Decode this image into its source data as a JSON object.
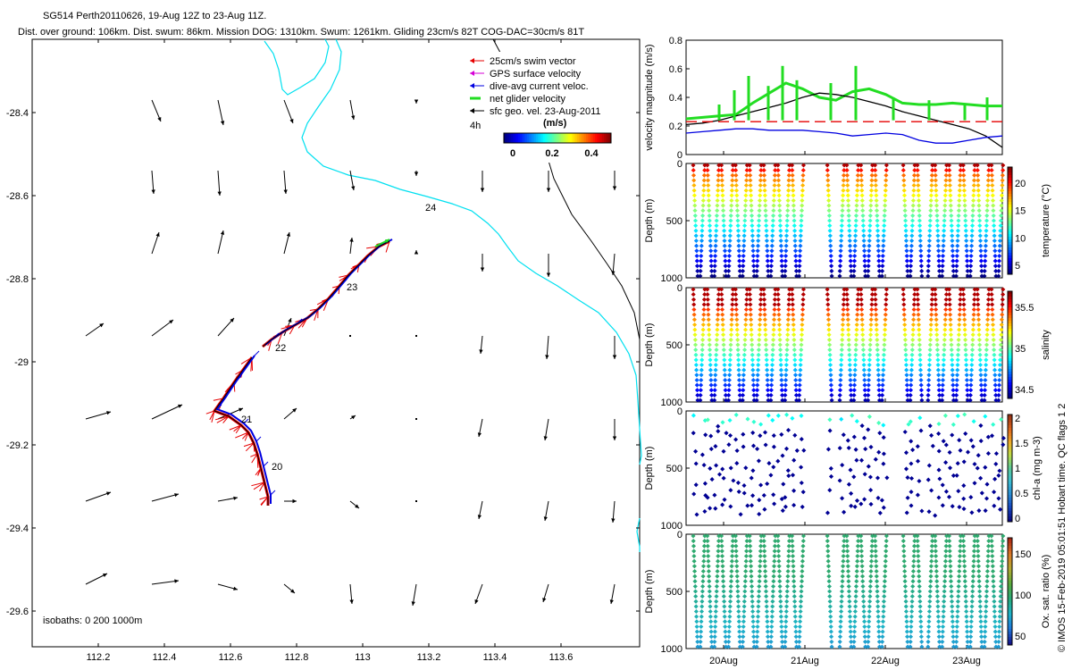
{
  "header": {
    "title_line1": "SG514 Perth20110626, 19-Aug 12Z to 23-Aug 11Z.",
    "title_line2": "Dist. over ground: 106km. Dist. swum: 86km. Mission DOG: 1310km. Swum: 1261km. Gliding 23cm/s 82T COG-DAC=30cm/s 81T"
  },
  "map": {
    "legend": {
      "items": [
        {
          "label": "25cm/s swim vector",
          "color": "#e60000"
        },
        {
          "label": "GPS surface velocity",
          "color": "#d600d6"
        },
        {
          "label": "dive-avg current veloc.",
          "color": "#0000e0"
        },
        {
          "label": "net glider velocity",
          "color": "#22dd22"
        },
        {
          "label": "sfc geo. vel. 23-Aug-2011",
          "color": "#000000"
        }
      ],
      "time_label": "4h",
      "colorbar_title": "(m/s)",
      "colorbar_ticks": [
        "0",
        "0.2",
        "0.4"
      ]
    },
    "isobaths_text": "isobaths: 0   200  1000m",
    "day_labels": [
      "24",
      "23",
      "22",
      "21",
      "20"
    ],
    "lat_ticks": [
      "-28.4",
      "-28.6",
      "-28.8",
      "-29",
      "-29.2",
      "-29.4",
      "-29.6"
    ],
    "lon_ticks": [
      "112.2",
      "112.4",
      "112.6",
      "112.8",
      "113",
      "113.2",
      "113.4",
      "113.6"
    ],
    "colors": {
      "coast": "#00e0f0",
      "isobath": "#000000",
      "track_red": "#e60000",
      "track_blue": "#0000e0",
      "net": "#22dd22"
    }
  },
  "chart_data": [
    {
      "type": "line",
      "ylabel": "velocity magnitude (m/s)",
      "ylim": [
        0,
        0.8
      ],
      "yticks": [
        "0",
        "0.2",
        "0.4",
        "0.6",
        "0.8"
      ],
      "series": [
        {
          "color": "#22dd22",
          "values": [
            0.25,
            0.26,
            0.27,
            0.28,
            0.36,
            0.43,
            0.5,
            0.46,
            0.4,
            0.38,
            0.44,
            0.46,
            0.42,
            0.36,
            0.35,
            0.35,
            0.36,
            0.35,
            0.34,
            0.34
          ]
        },
        {
          "color": "#000000",
          "values": [
            0.21,
            0.22,
            0.24,
            0.27,
            0.3,
            0.33,
            0.36,
            0.4,
            0.43,
            0.42,
            0.4,
            0.37,
            0.34,
            0.3,
            0.27,
            0.24,
            0.21,
            0.18,
            0.13,
            0.05
          ]
        },
        {
          "color": "#0000e0",
          "values": [
            0.15,
            0.16,
            0.17,
            0.18,
            0.18,
            0.17,
            0.17,
            0.17,
            0.16,
            0.15,
            0.13,
            0.14,
            0.15,
            0.14,
            0.1,
            0.08,
            0.08,
            0.1,
            0.12,
            0.13
          ]
        },
        {
          "color": "#e60000",
          "values": [
            0.23,
            0.23,
            0.23,
            0.23,
            0.23,
            0.23,
            0.23,
            0.23,
            0.23,
            0.23,
            0.23,
            0.23,
            0.23,
            0.23,
            0.23,
            0.23,
            0.23,
            0.23,
            0.23,
            0.23
          ]
        }
      ]
    },
    {
      "type": "scatter",
      "ylabel": "Depth (m)",
      "yticks": [
        "0",
        "500",
        "1000"
      ],
      "ylim": [
        1000,
        0
      ],
      "colorbar_label": "temperature (°C)",
      "colorbar_ticks": [
        "5",
        "10",
        "15",
        "20"
      ]
    },
    {
      "type": "scatter",
      "ylabel": "Depth (m)",
      "yticks": [
        "0",
        "500",
        "1000"
      ],
      "ylim": [
        1000,
        0
      ],
      "colorbar_label": "salinity",
      "colorbar_ticks": [
        "34.5",
        "35",
        "35.5"
      ]
    },
    {
      "type": "scatter",
      "ylabel": "Depth (m)",
      "yticks": [
        "0",
        "500",
        "1000"
      ],
      "ylim": [
        1000,
        0
      ],
      "colorbar_label": "chl-a (mg m-3)",
      "colorbar_ticks": [
        "0",
        "0.5",
        "1",
        "1.5",
        "2"
      ]
    },
    {
      "type": "scatter",
      "ylabel": "Depth (m)",
      "yticks": [
        "0",
        "500",
        "1000"
      ],
      "ylim": [
        1000,
        0
      ],
      "colorbar_label": "Ox. sat. ratio (%)",
      "colorbar_ticks": [
        "50",
        "100",
        "150"
      ]
    }
  ],
  "time_axis": {
    "ticks": [
      "20Aug",
      "21Aug",
      "22Aug",
      "23Aug"
    ]
  },
  "side_text": "© IMOS 15-Feb-2019 05:01:51 Hobart time. QC flags 1  2"
}
